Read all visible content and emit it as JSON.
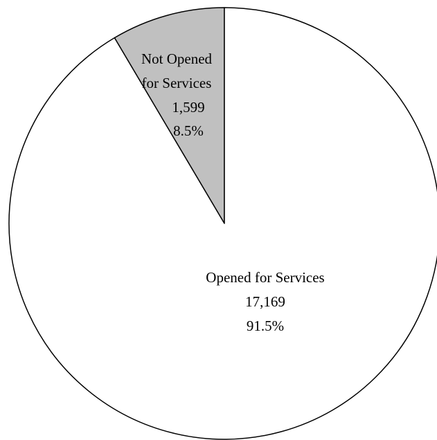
{
  "chart_data": {
    "type": "pie",
    "start_angle_deg": 0,
    "direction": "counterclockwise",
    "slices": [
      {
        "label_lines": [
          "Not Opened",
          "for Services"
        ],
        "value": 1599,
        "value_label": "1,599",
        "percent": 8.5,
        "percent_label": "8.5%",
        "color": "#c0c0c0"
      },
      {
        "label_lines": [
          "Opened for Services"
        ],
        "value": 17169,
        "value_label": "17,169",
        "percent": 91.5,
        "percent_label": "91.5%",
        "color": "#ffffff"
      }
    ],
    "stroke_color": "#000000",
    "legend": "none"
  }
}
